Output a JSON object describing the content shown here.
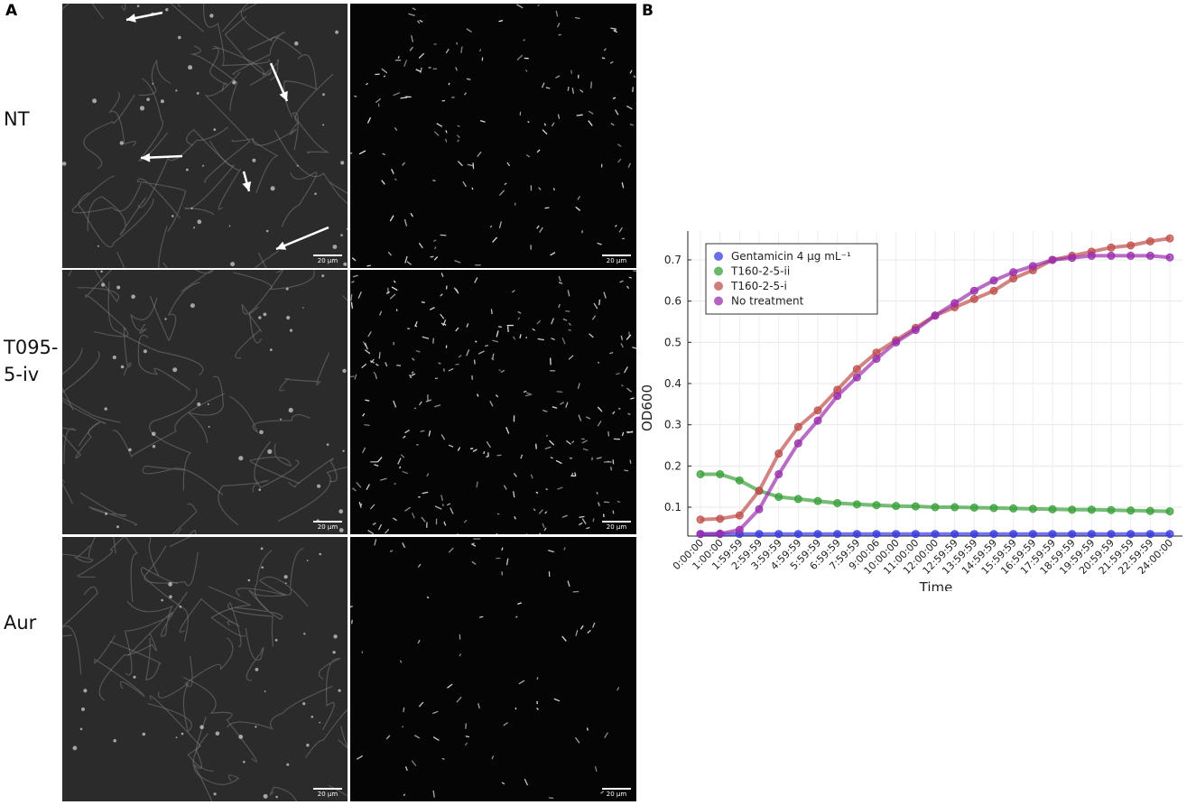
{
  "panels": {
    "a_label": "A",
    "b_label": "B"
  },
  "microscopy": {
    "rows": [
      {
        "label": "NT",
        "has_arrows": true
      },
      {
        "label": "T095-\n5-iv",
        "has_arrows": false
      },
      {
        "label": "Aur",
        "has_arrows": false
      }
    ],
    "scale_bar_label": "20 µm"
  },
  "chart_data": {
    "type": "line",
    "xlabel": "Time",
    "ylabel": "OD600",
    "ylim": [
      0.03,
      0.77
    ],
    "yticks": [
      0.1,
      0.2,
      0.3,
      0.4,
      0.5,
      0.6,
      0.7
    ],
    "grid": true,
    "legend_position": "top-left",
    "categories": [
      "0:00:00",
      "1:00:00",
      "1:59:59",
      "2:59:59",
      "3:59:59",
      "4:59:59",
      "5:59:59",
      "6:59:59",
      "7:59:59",
      "9:00:06",
      "10:00:00",
      "11:00:00",
      "12:00:00",
      "12:59:59",
      "13:59:59",
      "14:59:59",
      "15:59:59",
      "16:59:59",
      "17:59:59",
      "18:59:59",
      "19:59:59",
      "20:59:59",
      "21:59:59",
      "22:59:59",
      "24:00:00"
    ],
    "series": [
      {
        "name": "Gentamicin 4 µg mL⁻¹",
        "color": "#3b3be0",
        "values": [
          0.035,
          0.035,
          0.035,
          0.035,
          0.035,
          0.035,
          0.035,
          0.035,
          0.035,
          0.035,
          0.035,
          0.035,
          0.035,
          0.035,
          0.035,
          0.035,
          0.035,
          0.035,
          0.035,
          0.035,
          0.035,
          0.035,
          0.035,
          0.035,
          0.035
        ]
      },
      {
        "name": "T160-2-5-ii",
        "color": "#3aa03a",
        "values": [
          0.18,
          0.18,
          0.165,
          0.14,
          0.125,
          0.12,
          0.115,
          0.11,
          0.107,
          0.105,
          0.103,
          0.102,
          0.1,
          0.1,
          0.099,
          0.098,
          0.097,
          0.096,
          0.095,
          0.094,
          0.094,
          0.093,
          0.092,
          0.091,
          0.09
        ]
      },
      {
        "name": "T160-2-5-i",
        "color": "#c0504d",
        "values": [
          0.07,
          0.072,
          0.08,
          0.14,
          0.23,
          0.295,
          0.335,
          0.385,
          0.435,
          0.475,
          0.505,
          0.535,
          0.565,
          0.585,
          0.605,
          0.625,
          0.655,
          0.675,
          0.7,
          0.71,
          0.72,
          0.73,
          0.735,
          0.745,
          0.752
        ]
      },
      {
        "name": "No treatment",
        "color": "#9b2fae",
        "values": [
          0.035,
          0.036,
          0.045,
          0.095,
          0.18,
          0.255,
          0.31,
          0.37,
          0.415,
          0.46,
          0.5,
          0.53,
          0.565,
          0.595,
          0.625,
          0.65,
          0.67,
          0.685,
          0.7,
          0.705,
          0.71,
          0.71,
          0.71,
          0.71,
          0.706
        ]
      }
    ]
  }
}
